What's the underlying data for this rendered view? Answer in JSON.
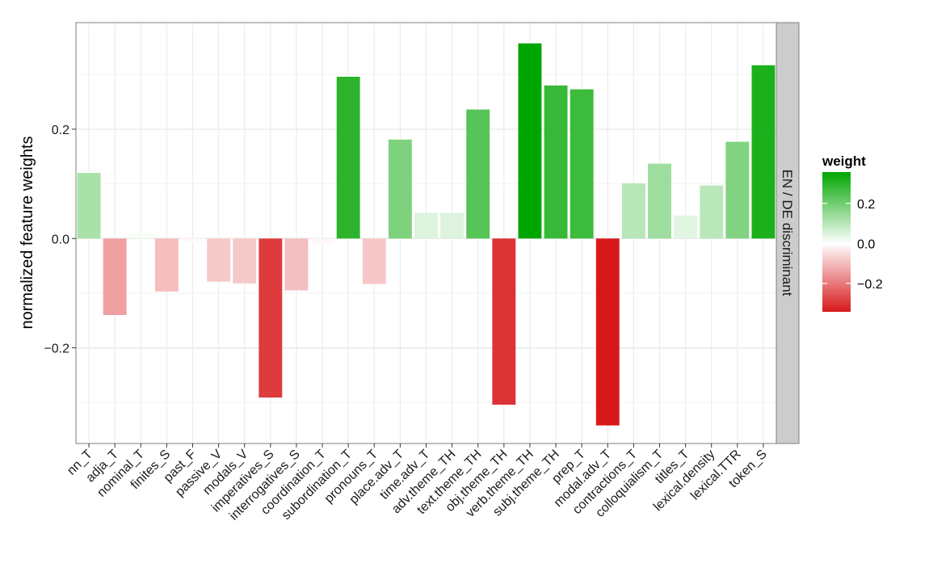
{
  "chart_data": {
    "type": "bar",
    "categories": [
      "nn_T",
      "adja_T",
      "nominal_T",
      "finites_S",
      "past_F",
      "passive_V",
      "modals_V",
      "imperatives_S",
      "interrogatives_S",
      "coordination_T",
      "subordination_T",
      "pronouns_T",
      "place.adv_T",
      "time.adv_T",
      "adv.theme_TH",
      "text.theme_TH",
      "obj.theme_TH",
      "verb.theme_TH",
      "subj.theme_TH",
      "prep_T",
      "modal.adv_T",
      "contractions_T",
      "colloquialism_T",
      "titles_T",
      "lexical.density",
      "lexical.TTR",
      "token_S"
    ],
    "values": [
      0.12,
      -0.14,
      0.01,
      -0.097,
      -0.007,
      -0.079,
      -0.082,
      -0.291,
      -0.095,
      -0.01,
      0.296,
      -0.083,
      0.181,
      0.047,
      0.047,
      0.236,
      -0.304,
      0.357,
      0.28,
      0.273,
      -0.342,
      0.101,
      0.137,
      0.042,
      0.097,
      0.177,
      0.317
    ],
    "xlabel": "",
    "ylabel": "normalized feature weights",
    "ylim": [
      -0.375,
      0.395
    ],
    "yticks": [
      -0.2,
      0.0,
      0.2
    ],
    "ytick_labels": [
      "−0.2",
      "0.0",
      "0.2"
    ],
    "grid": true,
    "facet_label": "EN / DE discriminant",
    "legend": {
      "title": "weight",
      "placement": "right",
      "range": [
        -0.342,
        0.357
      ],
      "ticks": [
        0.2,
        0.0,
        -0.2
      ],
      "tick_labels": [
        "0.2",
        "0.0",
        "−0.2"
      ],
      "low_color": "#d7191c",
      "mid_color": "#ffffff",
      "high_color": "#00a600"
    }
  }
}
